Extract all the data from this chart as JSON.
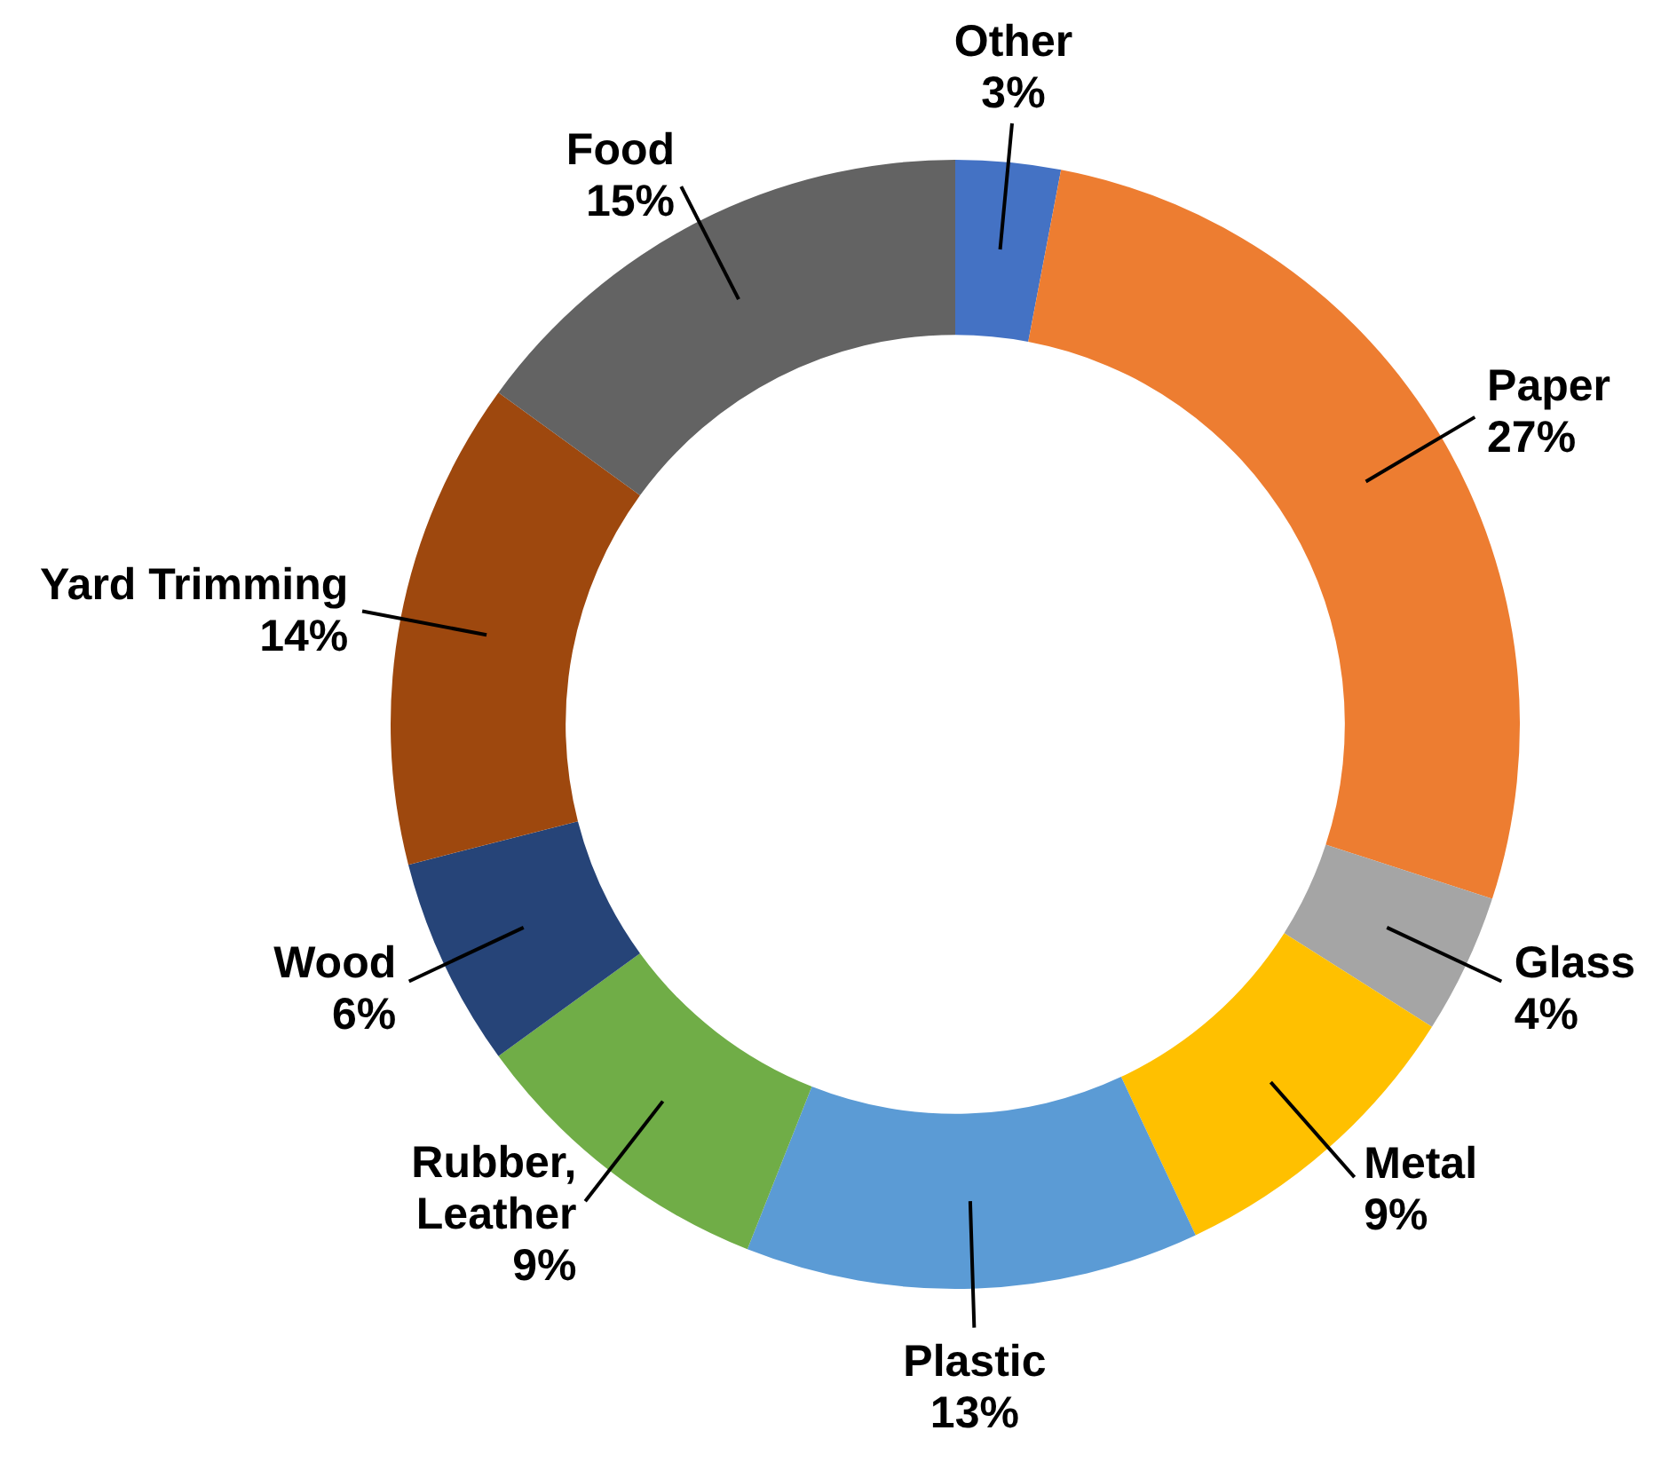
{
  "chart_data": {
    "type": "donut",
    "categories": [
      "Other",
      "Paper",
      "Glass",
      "Metal",
      "Plastic",
      "Rubber, Leather",
      "Wood",
      "Yard Trimming",
      "Food"
    ],
    "values": [
      3,
      27,
      4,
      9,
      13,
      9,
      6,
      14,
      15
    ],
    "value_labels": [
      "3%",
      "27%",
      "4%",
      "9%",
      "13%",
      "9%",
      "6%",
      "14%",
      "15%"
    ],
    "colors": [
      "#4472c4",
      "#ed7d31",
      "#a5a5a5",
      "#ffc000",
      "#5b9bd5",
      "#70ad47",
      "#264478",
      "#9e480e",
      "#636363"
    ]
  }
}
